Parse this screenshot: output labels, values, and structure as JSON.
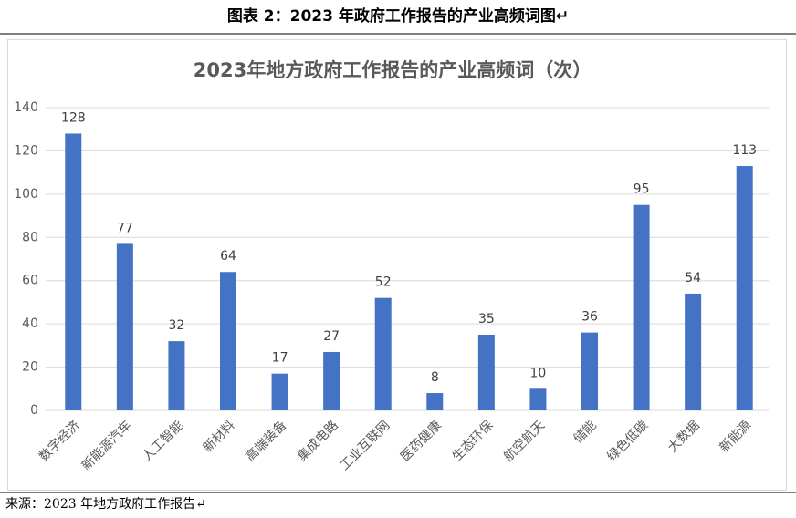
{
  "caption": "图表 2：2023 年政府工作报告的产业高频词图↵",
  "source": "来源：2023 年地方政府工作报告↵",
  "chart_data": {
    "type": "bar",
    "title": "2023年地方政府工作报告的产业高频词（次）",
    "categories": [
      "数字经济",
      "新能源汽车",
      "人工智能",
      "新材料",
      "高端装备",
      "集成电路",
      "工业互联网",
      "医药健康",
      "生态环保",
      "航空航天",
      "储能",
      "绿色低碳",
      "大数据",
      "新能源"
    ],
    "values": [
      128,
      77,
      32,
      64,
      17,
      27,
      52,
      8,
      35,
      10,
      36,
      95,
      54,
      113
    ],
    "color": "#4472c4",
    "ylim": [
      0,
      140
    ],
    "yticks": [
      0,
      20,
      40,
      60,
      80,
      100,
      120,
      140
    ],
    "grid": true
  }
}
